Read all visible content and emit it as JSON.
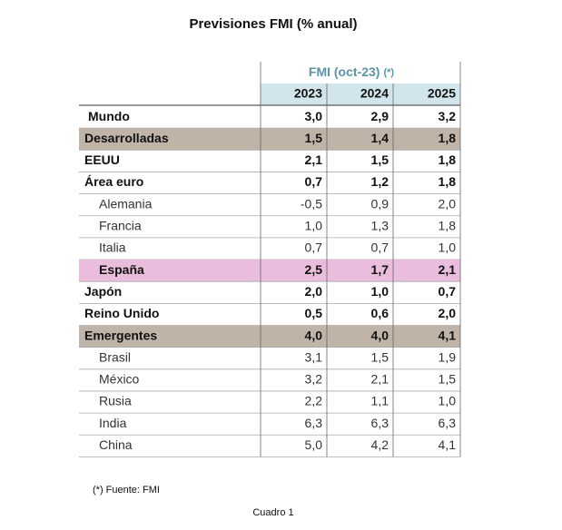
{
  "header": {
    "title": "Previsiones FMI (% anual)"
  },
  "table": {
    "group_header": "FMI (oct-23)",
    "group_note": "(*)",
    "columns": [
      "2023",
      "2024",
      "2025"
    ],
    "rows": [
      [
        "Mundo",
        "3,0",
        "2,9",
        "3,2"
      ],
      [
        "Desarrolladas",
        "1,5",
        "1,4",
        "1,8"
      ],
      [
        "EEUU",
        "2,1",
        "1,5",
        "1,8"
      ],
      [
        "Área euro",
        "0,7",
        "1,2",
        "1,8"
      ],
      [
        "Alemania",
        "-0,5",
        "0,9",
        "2,0"
      ],
      [
        "Francia",
        "1,0",
        "1,3",
        "1,8"
      ],
      [
        "Italia",
        "0,7",
        "0,7",
        "1,0"
      ],
      [
        "España",
        "2,5",
        "1,7",
        "2,1"
      ],
      [
        "Japón",
        "2,0",
        "1,0",
        "0,7"
      ],
      [
        "Reino Unido",
        "0,5",
        "0,6",
        "2,0"
      ],
      [
        "Emergentes",
        "4,0",
        "4,0",
        "4,1"
      ],
      [
        "Brasil",
        "3,1",
        "1,5",
        "1,9"
      ],
      [
        "México",
        "3,2",
        "2,1",
        "1,5"
      ],
      [
        "Rusia",
        "2,2",
        "1,1",
        "1,0"
      ],
      [
        "India",
        "6,3",
        "6,3",
        "6,3"
      ],
      [
        "China",
        "5,0",
        "4,2",
        "4,1"
      ]
    ]
  },
  "footnote": "(*) Fuente: FMI",
  "caption": "Cuadro 1"
}
